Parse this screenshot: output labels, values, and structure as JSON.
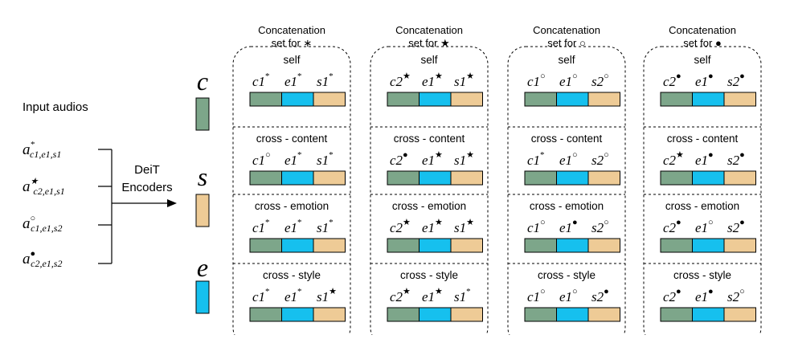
{
  "left": {
    "title": "Input audios",
    "inputs": [
      {
        "sym": "*",
        "sub": "c1,e1,s1"
      },
      {
        "sym": "★",
        "sub": "c2,e1,s1"
      },
      {
        "sym": "○",
        "sub": "c1,e1,s2"
      },
      {
        "sym": "●",
        "sub": "c2,e1,s2"
      }
    ],
    "encoder_label_line1": "DeiT",
    "encoder_label_line2": "Encoders"
  },
  "legend": [
    {
      "symbol": "c",
      "color": "#7da68a"
    },
    {
      "symbol": "s",
      "color": "#eecb96"
    },
    {
      "symbol": "e",
      "color": "#16c0ee"
    }
  ],
  "colors": {
    "content": "#7da68a",
    "emotion": "#16c0ee",
    "style": "#eecb96"
  },
  "columns": [
    {
      "header_line1": "Concatenation",
      "header_line2": "set for ∗",
      "rows": [
        {
          "label": "self",
          "tokens": [
            {
              "base": "c1",
              "sup": "*"
            },
            {
              "base": "e1",
              "sup": "*"
            },
            {
              "base": "s1",
              "sup": "*"
            }
          ]
        },
        {
          "label": "cross - content",
          "tokens": [
            {
              "base": "c1",
              "sup": "○"
            },
            {
              "base": "e1",
              "sup": "*"
            },
            {
              "base": "s1",
              "sup": "*"
            }
          ]
        },
        {
          "label": "cross - emotion",
          "tokens": [
            {
              "base": "c1",
              "sup": "*"
            },
            {
              "base": "e1",
              "sup": "*"
            },
            {
              "base": "s1",
              "sup": "*"
            }
          ]
        },
        {
          "label": "cross - style",
          "tokens": [
            {
              "base": "c1",
              "sup": "*"
            },
            {
              "base": "e1",
              "sup": "*"
            },
            {
              "base": "s1",
              "sup": "★"
            }
          ]
        }
      ]
    },
    {
      "header_line1": "Concatenation",
      "header_line2": "set for ★",
      "rows": [
        {
          "label": "self",
          "tokens": [
            {
              "base": "c2",
              "sup": "★"
            },
            {
              "base": "e1",
              "sup": "★"
            },
            {
              "base": "s1",
              "sup": "★"
            }
          ]
        },
        {
          "label": "cross - content",
          "tokens": [
            {
              "base": "c2",
              "sup": "●"
            },
            {
              "base": "e1",
              "sup": "★"
            },
            {
              "base": "s1",
              "sup": "★"
            }
          ]
        },
        {
          "label": "cross - emotion",
          "tokens": [
            {
              "base": "c2",
              "sup": "★"
            },
            {
              "base": "e1",
              "sup": "★"
            },
            {
              "base": "s1",
              "sup": "★"
            }
          ]
        },
        {
          "label": "cross - style",
          "tokens": [
            {
              "base": "c2",
              "sup": "★"
            },
            {
              "base": "e1",
              "sup": "★"
            },
            {
              "base": "s1",
              "sup": "*"
            }
          ]
        }
      ]
    },
    {
      "header_line1": "Concatenation",
      "header_line2": "set for ○",
      "rows": [
        {
          "label": "self",
          "tokens": [
            {
              "base": "c1",
              "sup": "○"
            },
            {
              "base": "e1",
              "sup": "○"
            },
            {
              "base": "s2",
              "sup": "○"
            }
          ]
        },
        {
          "label": "cross - content",
          "tokens": [
            {
              "base": "c1",
              "sup": "*"
            },
            {
              "base": "e1",
              "sup": "○"
            },
            {
              "base": "s2",
              "sup": "○"
            }
          ]
        },
        {
          "label": "cross - emotion",
          "tokens": [
            {
              "base": "c1",
              "sup": "○"
            },
            {
              "base": "e1",
              "sup": "●"
            },
            {
              "base": "s2",
              "sup": "○"
            }
          ]
        },
        {
          "label": "cross - style",
          "tokens": [
            {
              "base": "c1",
              "sup": "○"
            },
            {
              "base": "e1",
              "sup": "○"
            },
            {
              "base": "s2",
              "sup": "●"
            }
          ]
        }
      ]
    },
    {
      "header_line1": "Concatenation",
      "header_line2": "set for ●",
      "rows": [
        {
          "label": "self",
          "tokens": [
            {
              "base": "c2",
              "sup": "●"
            },
            {
              "base": "e1",
              "sup": "●"
            },
            {
              "base": "s2",
              "sup": "●"
            }
          ]
        },
        {
          "label": "cross - content",
          "tokens": [
            {
              "base": "c2",
              "sup": "★"
            },
            {
              "base": "e1",
              "sup": "●"
            },
            {
              "base": "s2",
              "sup": "●"
            }
          ]
        },
        {
          "label": "cross - emotion",
          "tokens": [
            {
              "base": "c2",
              "sup": "●"
            },
            {
              "base": "e1",
              "sup": "○"
            },
            {
              "base": "s2",
              "sup": "●"
            }
          ]
        },
        {
          "label": "cross - style",
          "tokens": [
            {
              "base": "c2",
              "sup": "●"
            },
            {
              "base": "e1",
              "sup": "●"
            },
            {
              "base": "s2",
              "sup": "○"
            }
          ]
        }
      ]
    }
  ]
}
